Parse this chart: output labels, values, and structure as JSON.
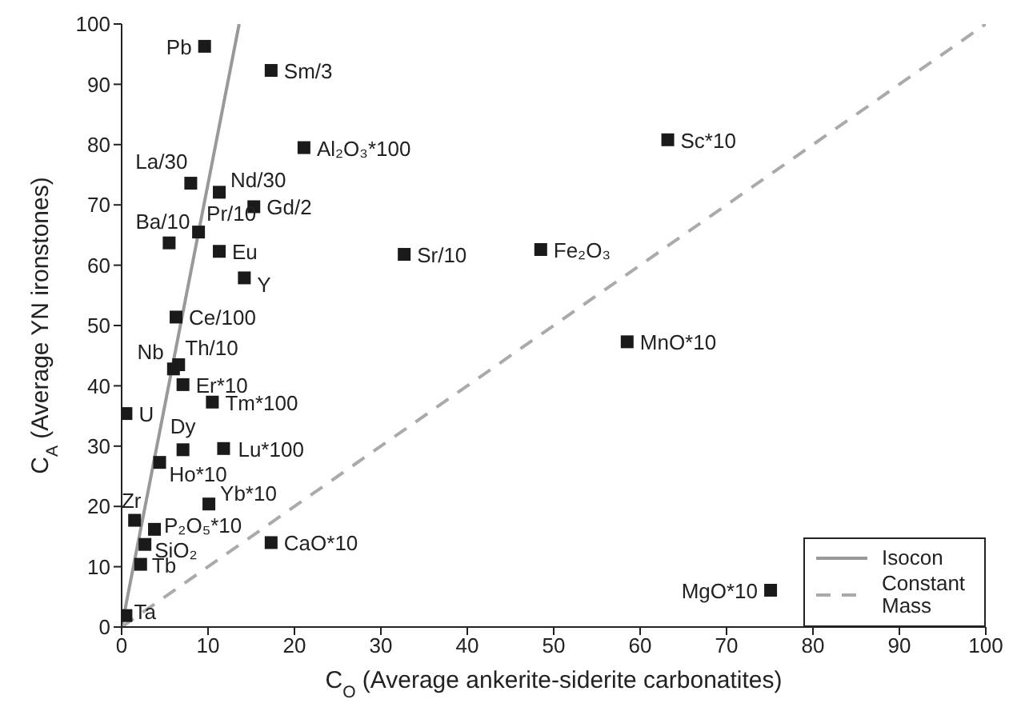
{
  "chart_data": {
    "type": "scatter",
    "xlabel": "C$_{O}$ (Average ankerite-siderite carbonatites)",
    "ylabel": "C$_{A}$ (Average YN ironstones)",
    "xlim": [
      0,
      100
    ],
    "ylim": [
      0,
      100
    ],
    "xticks": [
      0,
      10,
      20,
      30,
      40,
      50,
      60,
      70,
      80,
      90,
      100
    ],
    "yticks": [
      0,
      10,
      20,
      30,
      40,
      50,
      60,
      70,
      80,
      90,
      100
    ],
    "grid": false,
    "legend": "bottom right",
    "series": [
      {
        "color": "#1a1a1a",
        "marker": "square",
        "x": [
          9.6,
          17.3,
          21.1,
          8.0,
          11.3,
          15.3,
          8.9,
          5.5,
          11.3,
          14.2,
          32.7,
          6.3,
          6.0,
          6.6,
          7.1,
          10.5,
          0.5,
          7.1,
          11.8,
          4.4,
          10.1,
          1.5,
          3.8,
          2.7,
          2.2,
          17.3,
          0.5,
          63.2,
          48.5,
          58.5,
          75.1
        ],
        "values": [
          96.3,
          92.3,
          79.5,
          73.6,
          72.1,
          69.7,
          65.5,
          63.7,
          62.3,
          57.9,
          61.8,
          51.4,
          42.8,
          43.5,
          40.2,
          37.3,
          35.4,
          29.4,
          29.6,
          27.3,
          20.4,
          17.7,
          16.2,
          13.7,
          10.4,
          14.0,
          1.9,
          80.8,
          62.6,
          47.3,
          6.1
        ]
      },
      {
        "type": "line",
        "name": "Isocon",
        "color": "#999999",
        "line_style": "solid",
        "x": [
          0,
          13.6
        ],
        "values": [
          0,
          100
        ]
      },
      {
        "type": "line",
        "name": "Constant Mass",
        "color": "#aaaaaa",
        "line_style": "dashed",
        "x": [
          0,
          100
        ],
        "values": [
          0,
          100
        ]
      }
    ],
    "annotations": [
      {
        "text": "Pb",
        "x": 9.6,
        "y": 96.3
      },
      {
        "text": "Sm/3",
        "x": 17.3,
        "y": 92.3
      },
      {
        "text": "Al₂O₃*100",
        "x": 21.1,
        "y": 79.5
      },
      {
        "text": "La/30",
        "x": 8.0,
        "y": 73.6
      },
      {
        "text": "Nd/30",
        "x": 11.3,
        "y": 72.1
      },
      {
        "text": "Gd/2",
        "x": 15.3,
        "y": 69.7
      },
      {
        "text": "Pr/10",
        "x": 8.9,
        "y": 65.5
      },
      {
        "text": "Ba/10",
        "x": 5.5,
        "y": 63.7
      },
      {
        "text": "Eu",
        "x": 11.3,
        "y": 62.3
      },
      {
        "text": "Y",
        "x": 14.2,
        "y": 57.9
      },
      {
        "text": "Sr/10",
        "x": 32.7,
        "y": 61.8
      },
      {
        "text": "Ce/100",
        "x": 6.3,
        "y": 51.4
      },
      {
        "text": "Nb",
        "x": 6.0,
        "y": 42.8
      },
      {
        "text": "Th/10",
        "x": 6.6,
        "y": 43.5
      },
      {
        "text": "Er*10",
        "x": 7.1,
        "y": 40.2
      },
      {
        "text": "Tm*100",
        "x": 10.5,
        "y": 37.3
      },
      {
        "text": "U",
        "x": 0.5,
        "y": 35.4
      },
      {
        "text": "Dy",
        "x": 7.1,
        "y": 29.4
      },
      {
        "text": "Lu*100",
        "x": 11.8,
        "y": 29.6
      },
      {
        "text": "Ho*10",
        "x": 4.4,
        "y": 27.3
      },
      {
        "text": "Yb*10",
        "x": 10.1,
        "y": 20.4
      },
      {
        "text": "Zr",
        "x": 1.5,
        "y": 17.7
      },
      {
        "text": "P₂O₅*10",
        "x": 3.8,
        "y": 16.2
      },
      {
        "text": "SiO₂",
        "x": 2.7,
        "y": 13.7
      },
      {
        "text": "Tb",
        "x": 2.2,
        "y": 10.4
      },
      {
        "text": "CaO*10",
        "x": 17.3,
        "y": 14.0
      },
      {
        "text": "Ta",
        "x": 0.5,
        "y": 1.9
      },
      {
        "text": "Sc*10",
        "x": 63.2,
        "y": 80.8
      },
      {
        "text": "Fe₂O₃",
        "x": 48.5,
        "y": 62.6
      },
      {
        "text": "MnO*10",
        "x": 58.5,
        "y": 47.3
      },
      {
        "text": "MgO*10",
        "x": 75.1,
        "y": 6.1
      }
    ]
  }
}
